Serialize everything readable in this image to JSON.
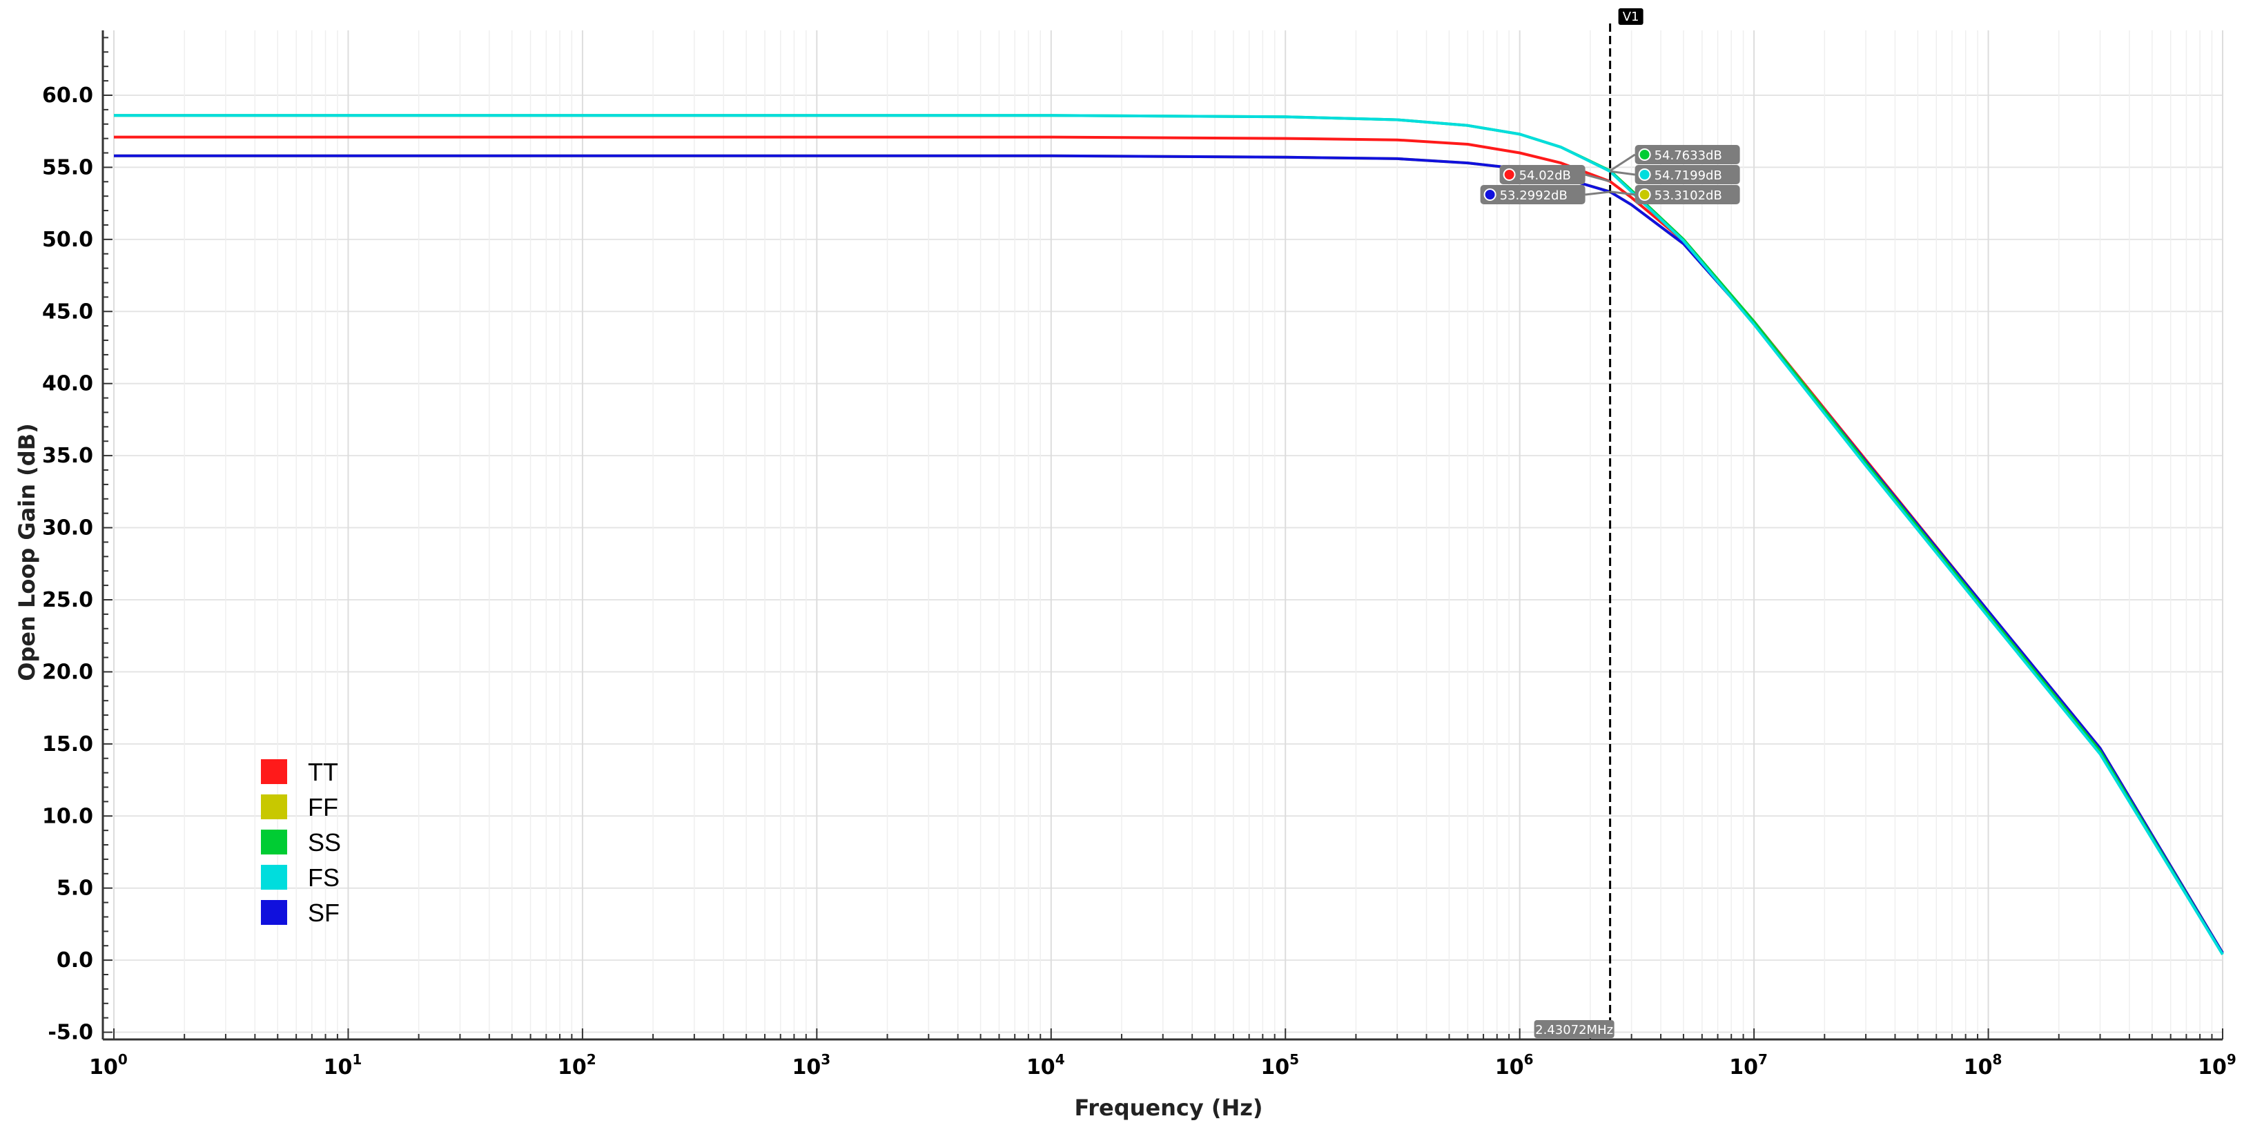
{
  "chart_data": {
    "type": "line",
    "title": "",
    "xlabel": "Frequency (Hz)",
    "ylabel": "Open Loop Gain (dB)",
    "xscale": "log",
    "xlim": [
      1,
      1000000000
    ],
    "ylim": [
      -5.5,
      64.5
    ],
    "x_tick_labels": [
      {
        "base": "10",
        "exp": "0"
      },
      {
        "base": "10",
        "exp": "1"
      },
      {
        "base": "10",
        "exp": "2"
      },
      {
        "base": "10",
        "exp": "3"
      },
      {
        "base": "10",
        "exp": "4"
      },
      {
        "base": "10",
        "exp": "5"
      },
      {
        "base": "10",
        "exp": "6"
      },
      {
        "base": "10",
        "exp": "7"
      },
      {
        "base": "10",
        "exp": "8"
      },
      {
        "base": "10",
        "exp": "9"
      }
    ],
    "y_ticks": [
      -5,
      0,
      5,
      10,
      15,
      20,
      25,
      30,
      35,
      40,
      45,
      50,
      55,
      60
    ],
    "y_tick_labels": [
      "-5.0",
      "0.0",
      "5.0",
      "10.0",
      "15.0",
      "20.0",
      "25.0",
      "30.0",
      "35.0",
      "40.0",
      "45.0",
      "50.0",
      "55.0",
      "60.0"
    ],
    "grid": true,
    "legend_position": "bottom-left",
    "series": [
      {
        "name": "TT",
        "color": "#ff1a1a",
        "x": [
          1,
          10000,
          100000,
          300000,
          600000,
          1000000,
          1500000,
          2430720,
          3000000,
          5000000,
          10000000,
          30000000,
          100000000,
          300000000,
          1000000000
        ],
        "y": [
          57.1,
          57.1,
          57.0,
          56.9,
          56.6,
          56.0,
          55.3,
          54.02,
          52.9,
          49.9,
          44.3,
          34.7,
          24.2,
          14.7,
          0.5
        ]
      },
      {
        "name": "FF",
        "color": "#c8c800",
        "x": [
          1,
          10000,
          100000,
          300000,
          600000,
          1000000,
          1500000,
          2430720,
          3000000,
          5000000,
          10000000,
          30000000,
          100000000,
          300000000,
          1000000000
        ],
        "y": [
          55.8,
          55.8,
          55.7,
          55.6,
          55.3,
          54.9,
          54.3,
          53.31,
          52.4,
          49.7,
          44.2,
          34.7,
          24.2,
          14.7,
          0.5
        ]
      },
      {
        "name": "SS",
        "color": "#00cc33",
        "x": [
          1,
          10000,
          100000,
          300000,
          600000,
          1000000,
          1500000,
          2430720,
          3000000,
          5000000,
          10000000,
          30000000,
          100000000,
          300000000,
          1000000000
        ],
        "y": [
          58.6,
          58.6,
          58.5,
          58.3,
          57.9,
          57.3,
          56.4,
          54.7633,
          53.4,
          50.0,
          44.3,
          34.5,
          24.0,
          14.5,
          0.4
        ]
      },
      {
        "name": "FS",
        "color": "#00dddd",
        "x": [
          1,
          10000,
          100000,
          300000,
          600000,
          1000000,
          1500000,
          2430720,
          3000000,
          5000000,
          10000000,
          30000000,
          100000000,
          300000000,
          1000000000
        ],
        "y": [
          58.6,
          58.6,
          58.5,
          58.3,
          57.9,
          57.3,
          56.4,
          54.7199,
          53.3,
          49.9,
          44.1,
          34.3,
          23.8,
          14.3,
          0.4
        ]
      },
      {
        "name": "SF",
        "color": "#1010dd",
        "x": [
          1,
          10000,
          100000,
          300000,
          600000,
          1000000,
          1500000,
          2430720,
          3000000,
          5000000,
          10000000,
          30000000,
          100000000,
          300000000,
          1000000000
        ],
        "y": [
          55.8,
          55.8,
          55.7,
          55.6,
          55.3,
          54.9,
          54.3,
          53.2992,
          52.4,
          49.7,
          44.2,
          34.6,
          24.2,
          14.7,
          0.5
        ]
      }
    ],
    "cursor": {
      "label": "V1",
      "x": 2430720,
      "readout": "2.43072MHz"
    },
    "markers": [
      {
        "series": "SS",
        "label": "54.7633dB",
        "color": "#00cc33"
      },
      {
        "series": "FS",
        "label": "54.7199dB",
        "color": "#00dddd"
      },
      {
        "series": "TT",
        "label": "54.02dB",
        "color": "#ff1a1a"
      },
      {
        "series": "SF",
        "label": "53.2992dB",
        "color": "#1010dd"
      },
      {
        "series": "FF",
        "label": "53.3102dB",
        "color": "#c8c800"
      }
    ]
  }
}
